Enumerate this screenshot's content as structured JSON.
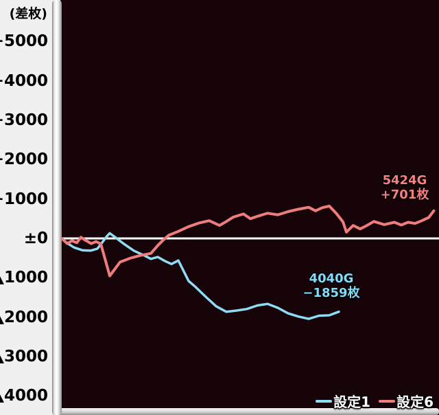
{
  "axis": {
    "unit_label": "(差枚)",
    "labels": [
      "+5000",
      "+4000",
      "+3000",
      "+2000",
      "+1000",
      "±0",
      "▲1000",
      "▲2000",
      "▲3000",
      "▲4000"
    ]
  },
  "legend": {
    "items": [
      {
        "label": "設定1",
        "color": "#8fdcf5"
      },
      {
        "label": "設定6",
        "color": "#ee7d7d"
      }
    ]
  },
  "annotations": {
    "set1": {
      "line1": "4040G",
      "line2": "−1859枚",
      "color": "#82dbf7"
    },
    "set6": {
      "line1": "5424G",
      "line2": "+701枚",
      "color": "#f58080"
    }
  },
  "colors": {
    "plot_background": "#170409",
    "zero_line": "#ffffff",
    "axis_text": "#000000"
  },
  "chart_data": {
    "type": "line",
    "title": "",
    "ylabel": "(差枚)",
    "x_unit": "G",
    "ylim": [
      -4000,
      5000
    ],
    "y_tick_interval": 1000,
    "grid": false,
    "zero_line_at": 0,
    "legend_position": "bottom-right",
    "series": [
      {
        "name": "設定1",
        "color": "#8fdcf5",
        "final_games": 4040,
        "final_diff": -1859,
        "points": [
          [
            0,
            0
          ],
          [
            80,
            -120
          ],
          [
            180,
            -230
          ],
          [
            300,
            -300
          ],
          [
            420,
            -310
          ],
          [
            520,
            -260
          ],
          [
            600,
            -80
          ],
          [
            660,
            60
          ],
          [
            700,
            130
          ],
          [
            780,
            30
          ],
          [
            900,
            -130
          ],
          [
            1050,
            -310
          ],
          [
            1200,
            -430
          ],
          [
            1300,
            -520
          ],
          [
            1400,
            -470
          ],
          [
            1500,
            -570
          ],
          [
            1600,
            -650
          ],
          [
            1700,
            -560
          ],
          [
            1850,
            -1080
          ],
          [
            1950,
            -1230
          ],
          [
            2100,
            -1480
          ],
          [
            2250,
            -1720
          ],
          [
            2400,
            -1860
          ],
          [
            2550,
            -1830
          ],
          [
            2700,
            -1790
          ],
          [
            2850,
            -1700
          ],
          [
            3000,
            -1660
          ],
          [
            3150,
            -1760
          ],
          [
            3300,
            -1900
          ],
          [
            3450,
            -1980
          ],
          [
            3600,
            -2040
          ],
          [
            3750,
            -1960
          ],
          [
            3900,
            -1950
          ],
          [
            4040,
            -1859
          ]
        ]
      },
      {
        "name": "設定6",
        "color": "#ee7d7d",
        "final_games": 5424,
        "final_diff": 701,
        "points": [
          [
            0,
            0
          ],
          [
            80,
            -130
          ],
          [
            150,
            -60
          ],
          [
            220,
            -110
          ],
          [
            280,
            30
          ],
          [
            350,
            -50
          ],
          [
            430,
            -130
          ],
          [
            500,
            -80
          ],
          [
            570,
            -140
          ],
          [
            700,
            -950
          ],
          [
            850,
            -600
          ],
          [
            1000,
            -500
          ],
          [
            1150,
            -430
          ],
          [
            1300,
            -380
          ],
          [
            1400,
            -180
          ],
          [
            1480,
            -40
          ],
          [
            1560,
            80
          ],
          [
            1700,
            180
          ],
          [
            1850,
            300
          ],
          [
            2000,
            390
          ],
          [
            2150,
            450
          ],
          [
            2300,
            330
          ],
          [
            2400,
            430
          ],
          [
            2500,
            540
          ],
          [
            2650,
            620
          ],
          [
            2750,
            500
          ],
          [
            2850,
            560
          ],
          [
            3000,
            640
          ],
          [
            3150,
            600
          ],
          [
            3300,
            680
          ],
          [
            3450,
            740
          ],
          [
            3600,
            790
          ],
          [
            3700,
            700
          ],
          [
            3800,
            780
          ],
          [
            3900,
            820
          ],
          [
            4000,
            640
          ],
          [
            4100,
            420
          ],
          [
            4150,
            160
          ],
          [
            4250,
            330
          ],
          [
            4350,
            240
          ],
          [
            4450,
            330
          ],
          [
            4550,
            430
          ],
          [
            4700,
            350
          ],
          [
            4850,
            410
          ],
          [
            4950,
            340
          ],
          [
            5050,
            410
          ],
          [
            5150,
            380
          ],
          [
            5250,
            450
          ],
          [
            5350,
            530
          ],
          [
            5424,
            701
          ]
        ]
      }
    ]
  }
}
